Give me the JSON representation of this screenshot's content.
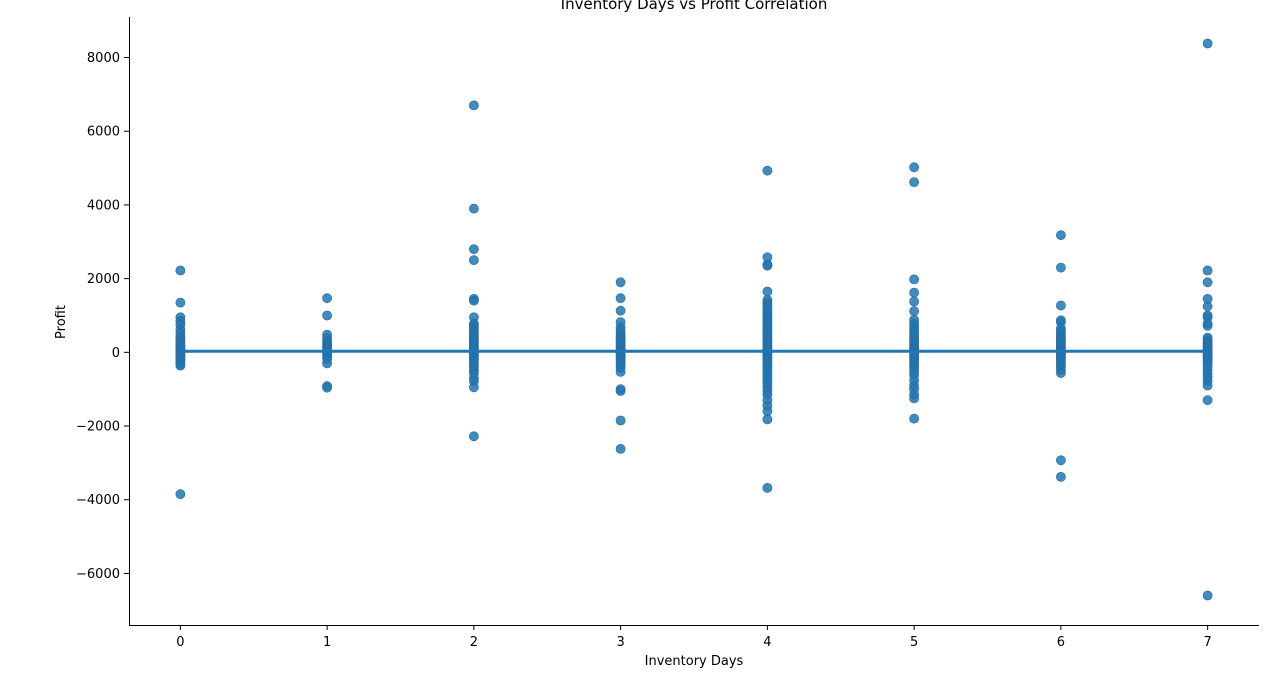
{
  "chart_data": {
    "type": "scatter",
    "title": "Inventory Days vs Profit Correlation",
    "xlabel": "Inventory Days",
    "ylabel": "Profit",
    "xlim": [
      -0.35,
      7.35
    ],
    "ylim": [
      -7400,
      9100
    ],
    "xticks": [
      0,
      1,
      2,
      3,
      4,
      5,
      6,
      7
    ],
    "yticks": [
      -6000,
      -4000,
      -2000,
      0,
      2000,
      4000,
      6000,
      8000
    ],
    "grid": false,
    "legend": "none",
    "point_color": "#1f77b4",
    "regression_line": {
      "color": "#1f77b4",
      "x": [
        0,
        7
      ],
      "y": [
        30,
        30
      ]
    },
    "points": [
      [
        0,
        2220
      ],
      [
        0,
        1350
      ],
      [
        0,
        950
      ],
      [
        0,
        850
      ],
      [
        0,
        750
      ],
      [
        0,
        620
      ],
      [
        0,
        520
      ],
      [
        0,
        430
      ],
      [
        0,
        360
      ],
      [
        0,
        300
      ],
      [
        0,
        250
      ],
      [
        0,
        200
      ],
      [
        0,
        160
      ],
      [
        0,
        120
      ],
      [
        0,
        80
      ],
      [
        0,
        40
      ],
      [
        0,
        10
      ],
      [
        0,
        -20
      ],
      [
        0,
        -60
      ],
      [
        0,
        -100
      ],
      [
        0,
        -140
      ],
      [
        0,
        -180
      ],
      [
        0,
        -220
      ],
      [
        0,
        -270
      ],
      [
        0,
        -320
      ],
      [
        0,
        -360
      ],
      [
        0,
        -3850
      ],
      [
        1,
        1470
      ],
      [
        1,
        1000
      ],
      [
        1,
        480
      ],
      [
        1,
        380
      ],
      [
        1,
        300
      ],
      [
        1,
        240
      ],
      [
        1,
        180
      ],
      [
        1,
        130
      ],
      [
        1,
        90
      ],
      [
        1,
        50
      ],
      [
        1,
        10
      ],
      [
        1,
        -30
      ],
      [
        1,
        -80
      ],
      [
        1,
        -130
      ],
      [
        1,
        -180
      ],
      [
        1,
        -300
      ],
      [
        1,
        -920
      ],
      [
        1,
        -960
      ],
      [
        2,
        6700
      ],
      [
        2,
        3900
      ],
      [
        2,
        2800
      ],
      [
        2,
        2500
      ],
      [
        2,
        1450
      ],
      [
        2,
        1400
      ],
      [
        2,
        950
      ],
      [
        2,
        780
      ],
      [
        2,
        720
      ],
      [
        2,
        650
      ],
      [
        2,
        580
      ],
      [
        2,
        520
      ],
      [
        2,
        460
      ],
      [
        2,
        400
      ],
      [
        2,
        350
      ],
      [
        2,
        300
      ],
      [
        2,
        250
      ],
      [
        2,
        200
      ],
      [
        2,
        150
      ],
      [
        2,
        100
      ],
      [
        2,
        60
      ],
      [
        2,
        20
      ],
      [
        2,
        -20
      ],
      [
        2,
        -60
      ],
      [
        2,
        -100
      ],
      [
        2,
        -150
      ],
      [
        2,
        -200
      ],
      [
        2,
        -260
      ],
      [
        2,
        -320
      ],
      [
        2,
        -400
      ],
      [
        2,
        -480
      ],
      [
        2,
        -560
      ],
      [
        2,
        -700
      ],
      [
        2,
        -780
      ],
      [
        2,
        -950
      ],
      [
        2,
        -2280
      ],
      [
        3,
        1900
      ],
      [
        3,
        1470
      ],
      [
        3,
        1130
      ],
      [
        3,
        820
      ],
      [
        3,
        680
      ],
      [
        3,
        580
      ],
      [
        3,
        500
      ],
      [
        3,
        430
      ],
      [
        3,
        370
      ],
      [
        3,
        310
      ],
      [
        3,
        260
      ],
      [
        3,
        210
      ],
      [
        3,
        160
      ],
      [
        3,
        110
      ],
      [
        3,
        70
      ],
      [
        3,
        30
      ],
      [
        3,
        -10
      ],
      [
        3,
        -50
      ],
      [
        3,
        -100
      ],
      [
        3,
        -150
      ],
      [
        3,
        -200
      ],
      [
        3,
        -260
      ],
      [
        3,
        -330
      ],
      [
        3,
        -420
      ],
      [
        3,
        -530
      ],
      [
        3,
        -1000
      ],
      [
        3,
        -1050
      ],
      [
        3,
        -1850
      ],
      [
        3,
        -2620
      ],
      [
        4,
        4930
      ],
      [
        4,
        2580
      ],
      [
        4,
        2380
      ],
      [
        4,
        2350
      ],
      [
        4,
        1650
      ],
      [
        4,
        1420
      ],
      [
        4,
        1350
      ],
      [
        4,
        1270
      ],
      [
        4,
        1200
      ],
      [
        4,
        1130
      ],
      [
        4,
        1060
      ],
      [
        4,
        990
      ],
      [
        4,
        920
      ],
      [
        4,
        850
      ],
      [
        4,
        780
      ],
      [
        4,
        710
      ],
      [
        4,
        640
      ],
      [
        4,
        580
      ],
      [
        4,
        520
      ],
      [
        4,
        460
      ],
      [
        4,
        400
      ],
      [
        4,
        350
      ],
      [
        4,
        300
      ],
      [
        4,
        250
      ],
      [
        4,
        200
      ],
      [
        4,
        150
      ],
      [
        4,
        100
      ],
      [
        4,
        60
      ],
      [
        4,
        20
      ],
      [
        4,
        -20
      ],
      [
        4,
        -60
      ],
      [
        4,
        -100
      ],
      [
        4,
        -150
      ],
      [
        4,
        -200
      ],
      [
        4,
        -260
      ],
      [
        4,
        -320
      ],
      [
        4,
        -380
      ],
      [
        4,
        -450
      ],
      [
        4,
        -520
      ],
      [
        4,
        -600
      ],
      [
        4,
        -680
      ],
      [
        4,
        -760
      ],
      [
        4,
        -850
      ],
      [
        4,
        -950
      ],
      [
        4,
        -1050
      ],
      [
        4,
        -1150
      ],
      [
        4,
        -1300
      ],
      [
        4,
        -1450
      ],
      [
        4,
        -1600
      ],
      [
        4,
        -1820
      ],
      [
        4,
        -3680
      ],
      [
        5,
        5020
      ],
      [
        5,
        4620
      ],
      [
        5,
        1980
      ],
      [
        5,
        1620
      ],
      [
        5,
        1380
      ],
      [
        5,
        1120
      ],
      [
        5,
        880
      ],
      [
        5,
        780
      ],
      [
        5,
        700
      ],
      [
        5,
        620
      ],
      [
        5,
        550
      ],
      [
        5,
        480
      ],
      [
        5,
        420
      ],
      [
        5,
        360
      ],
      [
        5,
        300
      ],
      [
        5,
        250
      ],
      [
        5,
        200
      ],
      [
        5,
        150
      ],
      [
        5,
        100
      ],
      [
        5,
        60
      ],
      [
        5,
        20
      ],
      [
        5,
        -20
      ],
      [
        5,
        -60
      ],
      [
        5,
        -110
      ],
      [
        5,
        -160
      ],
      [
        5,
        -220
      ],
      [
        5,
        -280
      ],
      [
        5,
        -350
      ],
      [
        5,
        -430
      ],
      [
        5,
        -520
      ],
      [
        5,
        -620
      ],
      [
        5,
        -760
      ],
      [
        5,
        -900
      ],
      [
        5,
        -1000
      ],
      [
        5,
        -1150
      ],
      [
        5,
        -1250
      ],
      [
        5,
        -1800
      ],
      [
        6,
        3180
      ],
      [
        6,
        2300
      ],
      [
        6,
        1270
      ],
      [
        6,
        870
      ],
      [
        6,
        820
      ],
      [
        6,
        650
      ],
      [
        6,
        570
      ],
      [
        6,
        500
      ],
      [
        6,
        440
      ],
      [
        6,
        380
      ],
      [
        6,
        320
      ],
      [
        6,
        270
      ],
      [
        6,
        220
      ],
      [
        6,
        170
      ],
      [
        6,
        120
      ],
      [
        6,
        80
      ],
      [
        6,
        40
      ],
      [
        6,
        0
      ],
      [
        6,
        -40
      ],
      [
        6,
        -80
      ],
      [
        6,
        -130
      ],
      [
        6,
        -180
      ],
      [
        6,
        -240
      ],
      [
        6,
        -310
      ],
      [
        6,
        -390
      ],
      [
        6,
        -470
      ],
      [
        6,
        -560
      ],
      [
        6,
        -2930
      ],
      [
        6,
        -3380
      ],
      [
        7,
        8380
      ],
      [
        7,
        2220
      ],
      [
        7,
        1900
      ],
      [
        7,
        1450
      ],
      [
        7,
        1250
      ],
      [
        7,
        1000
      ],
      [
        7,
        950
      ],
      [
        7,
        780
      ],
      [
        7,
        720
      ],
      [
        7,
        400
      ],
      [
        7,
        340
      ],
      [
        7,
        280
      ],
      [
        7,
        230
      ],
      [
        7,
        180
      ],
      [
        7,
        130
      ],
      [
        7,
        90
      ],
      [
        7,
        50
      ],
      [
        7,
        10
      ],
      [
        7,
        -30
      ],
      [
        7,
        -70
      ],
      [
        7,
        -120
      ],
      [
        7,
        -170
      ],
      [
        7,
        -230
      ],
      [
        7,
        -300
      ],
      [
        7,
        -380
      ],
      [
        7,
        -470
      ],
      [
        7,
        -570
      ],
      [
        7,
        -680
      ],
      [
        7,
        -780
      ],
      [
        7,
        -900
      ],
      [
        7,
        -1300
      ],
      [
        7,
        -6600
      ]
    ]
  }
}
